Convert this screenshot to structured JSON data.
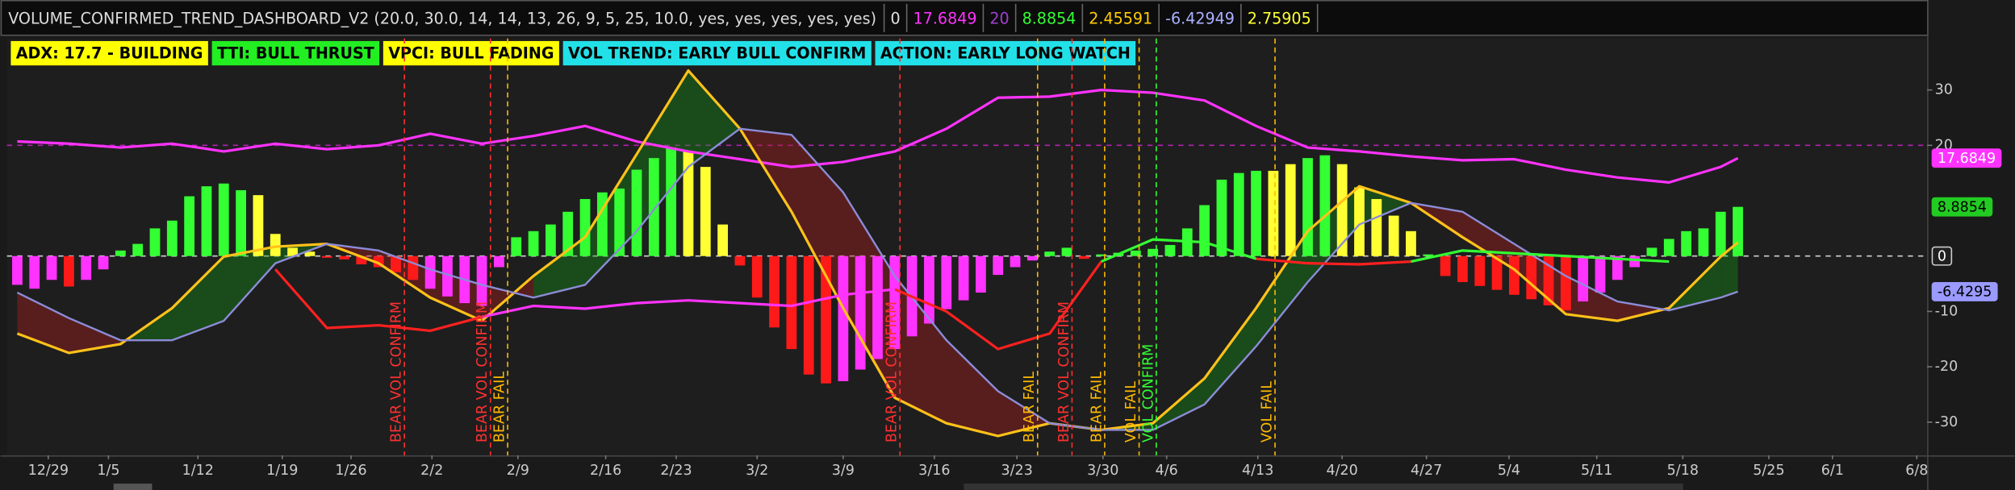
{
  "header": {
    "title": "VOLUME_CONFIRMED_TREND_DASHBOARD_V2 (20.0, 30.0, 14, 14, 13, 26, 9, 5, 25, 10.0, yes, yes, yes, yes, yes)",
    "readouts": [
      {
        "value": 0,
        "color": "#e0e0e0"
      },
      {
        "value": 17.6849,
        "color": "#ff33ff"
      },
      {
        "value": 20,
        "color": "#a040d0"
      },
      {
        "value": 8.8854,
        "color": "#33ff33"
      },
      {
        "value": 2.45591,
        "color": "#ffcc00"
      },
      {
        "value": -6.42949,
        "color": "#aab0ff"
      },
      {
        "value": 2.75905,
        "color": "#ffff33"
      }
    ]
  },
  "badges": [
    {
      "text": "ADX: 17.7 - BUILDING",
      "color": "#ffff00"
    },
    {
      "text": "TTI: BULL THRUST",
      "color": "#22ee22"
    },
    {
      "text": "VPCI: BULL FADING",
      "color": "#ffff00"
    },
    {
      "text": "VOL TREND: EARLY BULL CONFIRM",
      "color": "#22e0e8"
    },
    {
      "text": "ACTION: EARLY LONG WATCH",
      "color": "#22e0e8"
    }
  ],
  "chart_data": {
    "type": "combo",
    "xlim": [
      -0.6,
      111
    ],
    "ylim": [
      -36,
      39.3
    ],
    "yticks": [
      30,
      20,
      -10,
      -20,
      -30
    ],
    "xticks": [
      {
        "value": 1.8,
        "label": "12/29"
      },
      {
        "value": 5.3,
        "label": "1/5"
      },
      {
        "value": 10.5,
        "label": "1/12"
      },
      {
        "value": 15.4,
        "label": "1/19"
      },
      {
        "value": 19.4,
        "label": "1/26"
      },
      {
        "value": 24.1,
        "label": "2/2"
      },
      {
        "value": 29.1,
        "label": "2/9"
      },
      {
        "value": 34.2,
        "label": "2/16"
      },
      {
        "value": 38.3,
        "label": "2/23"
      },
      {
        "value": 43,
        "label": "3/2"
      },
      {
        "value": 48,
        "label": "3/9"
      },
      {
        "value": 53.3,
        "label": "3/16"
      },
      {
        "value": 58.1,
        "label": "3/23"
      },
      {
        "value": 63.1,
        "label": "3/30"
      },
      {
        "value": 66.8,
        "label": "4/6"
      },
      {
        "value": 72.1,
        "label": "4/13"
      },
      {
        "value": 77,
        "label": "4/20"
      },
      {
        "value": 81.9,
        "label": "4/27"
      },
      {
        "value": 86.7,
        "label": "5/4"
      },
      {
        "value": 91.8,
        "label": "5/11"
      },
      {
        "value": 96.8,
        "label": "5/18"
      },
      {
        "value": 101.8,
        "label": "5/25"
      },
      {
        "value": 105.5,
        "label": "6/1"
      },
      {
        "value": 110.4,
        "label": "6/8"
      }
    ],
    "histogram": {
      "values": [
        -5.2,
        -5.9,
        -4.3,
        -5.5,
        -4.3,
        -2.4,
        1,
        2.2,
        5,
        6.4,
        10.8,
        12.6,
        13.1,
        11.9,
        11,
        4,
        1.5,
        0.8,
        -0.3,
        -0.6,
        -1.5,
        -2,
        -2.9,
        -4.3,
        -5.9,
        -7.3,
        -8.5,
        -9,
        -2,
        3.4,
        4.5,
        5.7,
        8,
        10.3,
        11.5,
        12.2,
        15.6,
        17.7,
        19.6,
        18.9,
        16.1,
        5.7,
        -1.7,
        -7.5,
        -12.9,
        -16.8,
        -21.4,
        -23,
        -22.6,
        -20.5,
        -18.6,
        -16.8,
        -14.5,
        -12.2,
        -9.6,
        -8,
        -6.6,
        -3.4,
        -2,
        -0.8,
        0.8,
        1.5,
        -0.5,
        0.3,
        0.6,
        1,
        1.3,
        2,
        5,
        9.2,
        13.8,
        15,
        15.4,
        15.4,
        16.6,
        17.7,
        18.2,
        16.6,
        12.4,
        10.3,
        7.3,
        4.5,
        0.3,
        -3.6,
        -4.7,
        -5.4,
        -6.1,
        -7,
        -7.8,
        -8.9,
        -9.8,
        -8.2,
        -6.6,
        -4.3,
        -2,
        1.5,
        3.1,
        4.5,
        5,
        8,
        8.8854
      ],
      "colors": [
        "#ff33ff",
        "#ff33ff",
        "#ff33ff",
        "#ff1a1a",
        "#ff33ff",
        "#ff33ff",
        "#33ff33",
        "#33ff33",
        "#33ff33",
        "#33ff33",
        "#33ff33",
        "#33ff33",
        "#33ff33",
        "#33ff33",
        "#ffff33",
        "#ffff33",
        "#ffff33",
        "#ffff33",
        "#ff1a1a",
        "#ff1a1a",
        "#ff1a1a",
        "#ff1a1a",
        "#ff1a1a",
        "#ff1a1a",
        "#ff33ff",
        "#ff33ff",
        "#ff33ff",
        "#ff33ff",
        "#ff33ff",
        "#33ff33",
        "#33ff33",
        "#33ff33",
        "#33ff33",
        "#33ff33",
        "#33ff33",
        "#33ff33",
        "#33ff33",
        "#33ff33",
        "#33ff33",
        "#ffff33",
        "#ffff33",
        "#ffff33",
        "#ff1a1a",
        "#ff1a1a",
        "#ff1a1a",
        "#ff1a1a",
        "#ff1a1a",
        "#ff1a1a",
        "#ff33ff",
        "#ff33ff",
        "#ff33ff",
        "#ff33ff",
        "#ff33ff",
        "#ff33ff",
        "#ff33ff",
        "#ff33ff",
        "#ff33ff",
        "#ff33ff",
        "#ff33ff",
        "#ff33ff",
        "#33ff33",
        "#33ff33",
        "#ff1a1a",
        "#33ff33",
        "#33ff33",
        "#33ff33",
        "#33ff33",
        "#33ff33",
        "#33ff33",
        "#33ff33",
        "#33ff33",
        "#33ff33",
        "#33ff33",
        "#ffff33",
        "#ffff33",
        "#33ff33",
        "#33ff33",
        "#ffff33",
        "#ffff33",
        "#ffff33",
        "#ffff33",
        "#ffff33",
        "#33ff33",
        "#ff1a1a",
        "#ff1a1a",
        "#ff1a1a",
        "#ff1a1a",
        "#ff1a1a",
        "#ff1a1a",
        "#ff1a1a",
        "#ff1a1a",
        "#ff33ff",
        "#ff33ff",
        "#ff33ff",
        "#ff33ff",
        "#33ff33",
        "#33ff33",
        "#33ff33",
        "#33ff33",
        "#33ff33",
        "#33ff33"
      ]
    },
    "line_x": [
      0,
      3,
      6,
      9,
      12,
      15,
      18,
      21,
      24,
      27,
      30,
      33,
      36,
      39,
      42,
      45,
      48,
      51,
      54,
      57,
      60,
      63,
      66,
      69,
      72,
      75,
      78,
      81,
      84,
      87,
      90,
      93,
      96,
      99,
      100
    ],
    "lines": [
      {
        "color": "#ff33ff",
        "width": 2,
        "values": [
          20.7,
          20.3,
          19.6,
          20.3,
          18.9,
          20.3,
          19.3,
          20,
          22.1,
          20.3,
          21.7,
          23.5,
          20.7,
          18.9,
          17.5,
          16.1,
          17,
          18.9,
          23,
          28.6,
          28.8,
          30,
          29.5,
          28.1,
          23.5,
          19.6,
          18.9,
          18,
          17.3,
          17.5,
          15.6,
          14.2,
          13.3,
          16.1,
          17.6849
        ]
      },
      {
        "color": "#ffc21a",
        "width": 2,
        "values": [
          -14,
          -17.5,
          -15.9,
          -9.4,
          -0.1,
          1.7,
          2.2,
          -1.3,
          -7.5,
          -11.7,
          -3.6,
          3.4,
          18.4,
          33.5,
          23,
          8,
          -9.4,
          -25.6,
          -30.2,
          -32.5,
          -30.2,
          -31.4,
          -30.2,
          -22.1,
          -9.4,
          4.5,
          12.6,
          9.6,
          3.4,
          -2.4,
          -10.5,
          -11.7,
          -9.4,
          -0.1,
          2.45591
        ]
      },
      {
        "color": "#8c8cd8",
        "width": 1.5,
        "values": [
          -6.6,
          -11.2,
          -15.2,
          -15.2,
          -11.7,
          -1.3,
          2.2,
          1,
          -2.4,
          -5.2,
          -7.5,
          -5.2,
          4.5,
          16.1,
          23,
          21.9,
          11.5,
          -3.6,
          -15.2,
          -24.4,
          -30.2,
          -31.4,
          -31.4,
          -26.8,
          -16.3,
          -4.7,
          5.7,
          9.6,
          8,
          2.2,
          -3.6,
          -8.2,
          -9.8,
          -7.5,
          -6.42949
        ]
      },
      {
        "color": "#ff2020",
        "width": 2,
        "values": [
          null,
          null,
          null,
          null,
          null,
          -2.4,
          -13,
          -12.5,
          -13.5,
          -11,
          null,
          null,
          null,
          null,
          null,
          null,
          null,
          -6,
          -10,
          -16.8,
          -14,
          -1,
          null,
          null,
          -0.5,
          -1.3,
          -1.5,
          -1,
          null,
          null,
          null,
          null,
          null,
          null,
          null
        ]
      },
      {
        "color": "#ff33ff",
        "width": 2,
        "values": [
          null,
          null,
          null,
          null,
          null,
          null,
          null,
          null,
          null,
          -11,
          -9,
          -9.5,
          -8.5,
          -8,
          -8.5,
          -9,
          -7,
          -6,
          null,
          null,
          null,
          null,
          null,
          null,
          null,
          null,
          null,
          null,
          null,
          null,
          null,
          null,
          null,
          null,
          null
        ]
      },
      {
        "color": "#33ff33",
        "width": 2,
        "values": [
          null,
          null,
          null,
          null,
          null,
          null,
          null,
          null,
          null,
          null,
          null,
          null,
          null,
          null,
          null,
          null,
          null,
          null,
          null,
          null,
          null,
          -1,
          3,
          2.5,
          -0.5,
          null,
          null,
          -1,
          1,
          0.5,
          0,
          -0.5,
          -1,
          null,
          null
        ]
      }
    ],
    "fill_between": [
      1,
      2
    ],
    "fill_colors": {
      "above": "rgba(20,150,20,0.38)",
      "below": "rgba(170,30,30,0.42)"
    },
    "reference_lines": [
      {
        "value": 20,
        "color": "#b022b0"
      },
      {
        "value": 0,
        "color": "#d0d0d0"
      }
    ],
    "annotations": [
      {
        "x": 22.5,
        "label": "BEAR VOL CONFIRM",
        "color": "#ff3030"
      },
      {
        "x": 27.5,
        "label": "BEAR VOL CONFIRM",
        "color": "#ff3030"
      },
      {
        "x": 28.5,
        "label": "BEAR FAIL",
        "color": "#ffbb00"
      },
      {
        "x": 51.3,
        "label": "BEAR VOL CONFIRM",
        "color": "#ff3030"
      },
      {
        "x": 59.3,
        "label": "BEAR FAIL",
        "color": "#ffbb00"
      },
      {
        "x": 61.3,
        "label": "BEAR VOL CONFIRM",
        "color": "#ff3030"
      },
      {
        "x": 63.2,
        "label": "BEAR FAIL",
        "color": "#ffbb00"
      },
      {
        "x": 65.2,
        "label": "VOL FAIL",
        "color": "#ffbb00"
      },
      {
        "x": 66.2,
        "label": "VOL CONFIRM",
        "color": "#33ff33"
      },
      {
        "x": 73.1,
        "label": "VOL FAIL",
        "color": "#ffbb00"
      }
    ],
    "axis_bubbles": [
      {
        "value": 17.6849,
        "color": "#ff33ff",
        "text_color": "#ffffff"
      },
      {
        "value": 8.8854,
        "color": "#22cc22",
        "text_color": "#000000"
      },
      {
        "value": 0,
        "color": "#202020",
        "text_color": "#ffffff"
      },
      {
        "value": -6.4295,
        "color": "#9a9aff",
        "text_color": "#000000"
      }
    ]
  }
}
